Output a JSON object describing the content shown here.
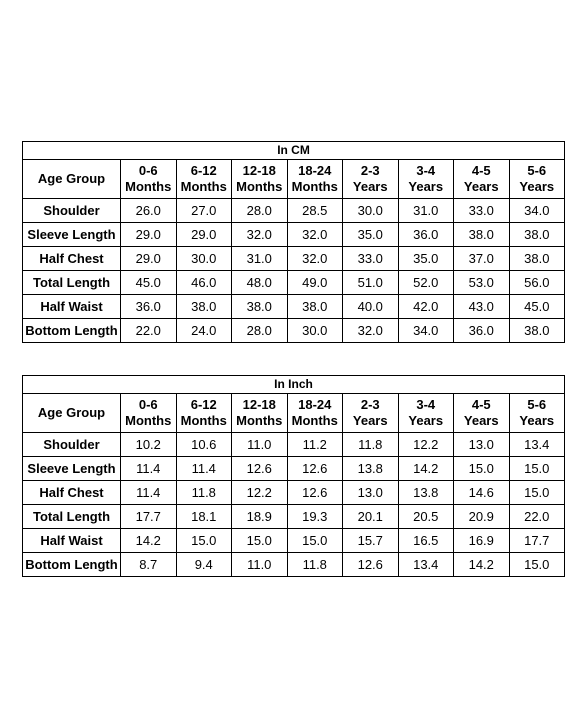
{
  "tables": [
    {
      "title": "In CM",
      "header_label": "Age Group",
      "age_groups": [
        [
          "0-6",
          "Months"
        ],
        [
          "6-12",
          "Months"
        ],
        [
          "12-18",
          "Months"
        ],
        [
          "18-24",
          "Months"
        ],
        [
          "2-3",
          "Years"
        ],
        [
          "3-4",
          "Years"
        ],
        [
          "4-5",
          "Years"
        ],
        [
          "5-6",
          "Years"
        ]
      ],
      "rows": [
        {
          "label": "Shoulder",
          "values": [
            "26.0",
            "27.0",
            "28.0",
            "28.5",
            "30.0",
            "31.0",
            "33.0",
            "34.0"
          ]
        },
        {
          "label": "Sleeve Length",
          "values": [
            "29.0",
            "29.0",
            "32.0",
            "32.0",
            "35.0",
            "36.0",
            "38.0",
            "38.0"
          ]
        },
        {
          "label": "Half Chest",
          "values": [
            "29.0",
            "30.0",
            "31.0",
            "32.0",
            "33.0",
            "35.0",
            "37.0",
            "38.0"
          ]
        },
        {
          "label": "Total Length",
          "values": [
            "45.0",
            "46.0",
            "48.0",
            "49.0",
            "51.0",
            "52.0",
            "53.0",
            "56.0"
          ]
        },
        {
          "label": "Half Waist",
          "values": [
            "36.0",
            "38.0",
            "38.0",
            "38.0",
            "40.0",
            "42.0",
            "43.0",
            "45.0"
          ]
        },
        {
          "label": "Bottom Length",
          "values": [
            "22.0",
            "24.0",
            "28.0",
            "30.0",
            "32.0",
            "34.0",
            "36.0",
            "38.0"
          ]
        }
      ]
    },
    {
      "title": "In Inch",
      "header_label": "Age Group",
      "age_groups": [
        [
          "0-6",
          "Months"
        ],
        [
          "6-12",
          "Months"
        ],
        [
          "12-18",
          "Months"
        ],
        [
          "18-24",
          "Months"
        ],
        [
          "2-3",
          "Years"
        ],
        [
          "3-4",
          "Years"
        ],
        [
          "4-5",
          "Years"
        ],
        [
          "5-6",
          "Years"
        ]
      ],
      "rows": [
        {
          "label": "Shoulder",
          "values": [
            "10.2",
            "10.6",
            "11.0",
            "11.2",
            "11.8",
            "12.2",
            "13.0",
            "13.4"
          ]
        },
        {
          "label": "Sleeve Length",
          "values": [
            "11.4",
            "11.4",
            "12.6",
            "12.6",
            "13.8",
            "14.2",
            "15.0",
            "15.0"
          ]
        },
        {
          "label": "Half Chest",
          "values": [
            "11.4",
            "11.8",
            "12.2",
            "12.6",
            "13.0",
            "13.8",
            "14.6",
            "15.0"
          ]
        },
        {
          "label": "Total Length",
          "values": [
            "17.7",
            "18.1",
            "18.9",
            "19.3",
            "20.1",
            "20.5",
            "20.9",
            "22.0"
          ]
        },
        {
          "label": "Half Waist",
          "values": [
            "14.2",
            "15.0",
            "15.0",
            "15.0",
            "15.7",
            "16.5",
            "16.9",
            "17.7"
          ]
        },
        {
          "label": "Bottom Length",
          "values": [
            "8.7",
            "9.4",
            "11.0",
            "11.8",
            "12.6",
            "13.4",
            "14.2",
            "15.0"
          ]
        }
      ]
    }
  ]
}
